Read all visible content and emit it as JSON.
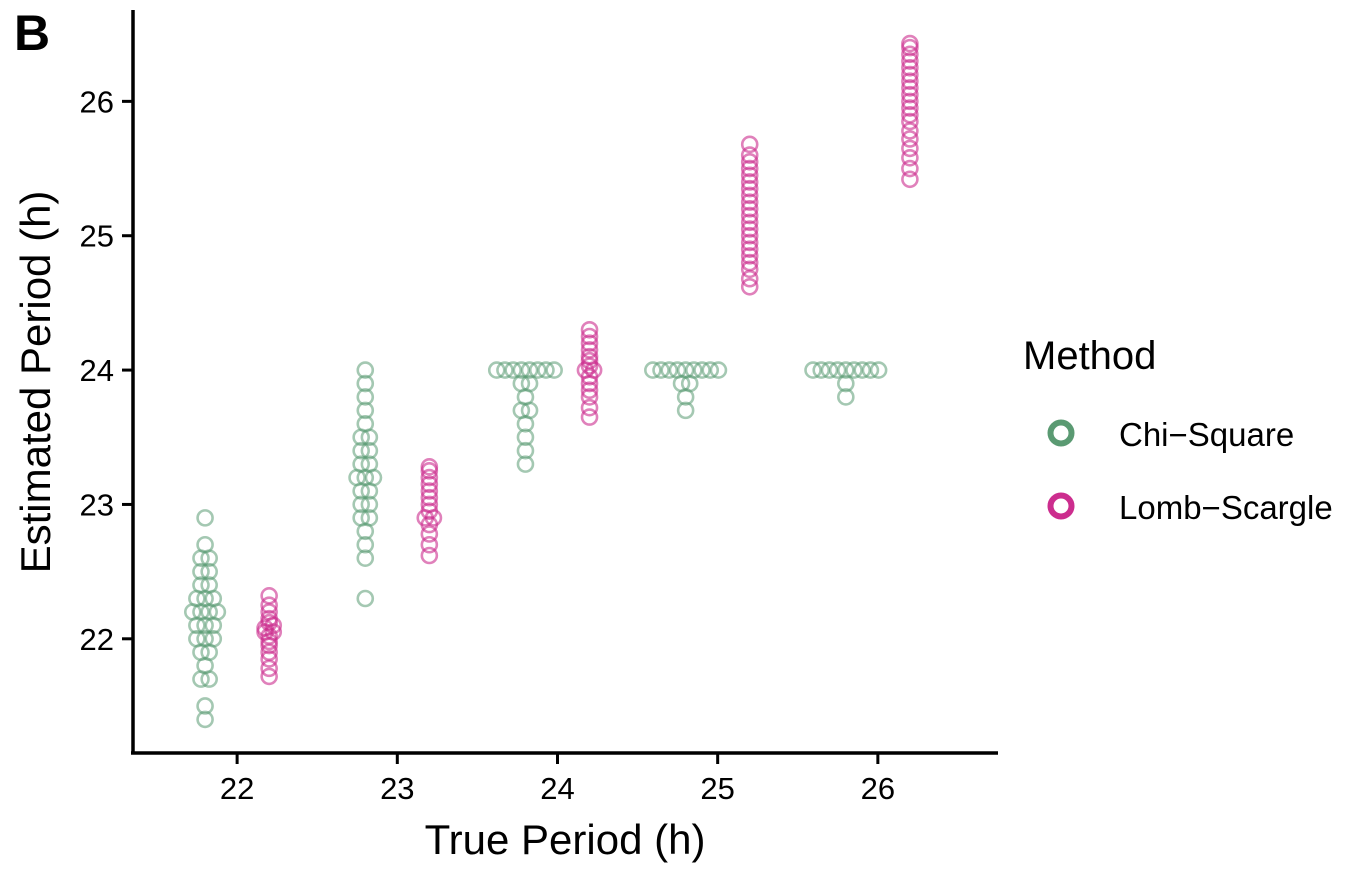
{
  "chart_data": {
    "type": "scatter",
    "panel_label": "B",
    "xlabel": "True Period (h)",
    "ylabel": "Estimated Period (h)",
    "xlim": [
      21.35,
      26.75
    ],
    "ylim": [
      21.15,
      26.68
    ],
    "x_ticks": [
      22,
      23,
      24,
      25,
      26
    ],
    "y_ticks": [
      22,
      23,
      24,
      25,
      26
    ],
    "grid": false,
    "legend": {
      "title": "Method",
      "position": "right"
    },
    "series": [
      {
        "name": "Chi−Square",
        "color": "#5a9a72",
        "groups": [
          {
            "x": 21.8,
            "y": [
              21.4,
              21.5,
              21.7,
              21.7,
              21.8,
              21.9,
              21.9,
              22.0,
              22.0,
              22.0,
              22.1,
              22.1,
              22.1,
              22.2,
              22.2,
              22.2,
              22.2,
              22.3,
              22.3,
              22.3,
              22.4,
              22.4,
              22.5,
              22.5,
              22.6,
              22.6,
              22.7,
              22.9
            ]
          },
          {
            "x": 22.8,
            "y": [
              22.3,
              22.6,
              22.7,
              22.8,
              22.9,
              22.9,
              23.0,
              23.0,
              23.1,
              23.1,
              23.2,
              23.2,
              23.2,
              23.3,
              23.3,
              23.4,
              23.4,
              23.5,
              23.5,
              23.6,
              23.7,
              23.8,
              23.9,
              24.0
            ]
          },
          {
            "x": 23.8,
            "y": [
              23.3,
              23.4,
              23.5,
              23.6,
              23.7,
              23.7,
              23.8,
              23.9,
              23.9,
              24.0,
              24.0,
              24.0,
              24.0,
              24.0,
              24.0,
              24.0,
              24.0
            ]
          },
          {
            "x": 24.8,
            "y": [
              23.7,
              23.8,
              23.9,
              23.9,
              24.0,
              24.0,
              24.0,
              24.0,
              24.0,
              24.0,
              24.0,
              24.0,
              24.0
            ]
          },
          {
            "x": 25.8,
            "y": [
              23.8,
              23.9,
              24.0,
              24.0,
              24.0,
              24.0,
              24.0,
              24.0,
              24.0,
              24.0,
              24.0
            ]
          }
        ]
      },
      {
        "name": "Lomb−Scargle",
        "color": "#cc2d8e",
        "groups": [
          {
            "x": 22.2,
            "y": [
              21.72,
              21.78,
              21.85,
              21.9,
              21.95,
              21.98,
              22.02,
              22.05,
              22.05,
              22.08,
              22.1,
              22.12,
              22.15,
              22.2,
              22.25,
              22.32
            ]
          },
          {
            "x": 23.2,
            "y": [
              22.62,
              22.7,
              22.78,
              22.85,
              22.9,
              22.9,
              22.95,
              23.0,
              23.05,
              23.1,
              23.15,
              23.2,
              23.25,
              23.28
            ]
          },
          {
            "x": 24.2,
            "y": [
              23.65,
              23.72,
              23.8,
              23.85,
              23.9,
              23.95,
              24.0,
              24.0,
              24.03,
              24.07,
              24.1,
              24.15,
              24.2,
              24.25,
              24.3
            ]
          },
          {
            "x": 25.2,
            "y": [
              24.62,
              24.68,
              24.75,
              24.8,
              24.85,
              24.9,
              24.95,
              25.0,
              25.05,
              25.1,
              25.15,
              25.2,
              25.25,
              25.3,
              25.35,
              25.4,
              25.45,
              25.5,
              25.55,
              25.6,
              25.68
            ]
          },
          {
            "x": 26.2,
            "y": [
              25.42,
              25.5,
              25.58,
              25.65,
              25.72,
              25.78,
              25.85,
              25.9,
              25.95,
              26.0,
              26.05,
              26.1,
              26.15,
              26.2,
              26.25,
              26.3,
              26.35,
              26.4,
              26.43
            ]
          }
        ]
      }
    ]
  }
}
